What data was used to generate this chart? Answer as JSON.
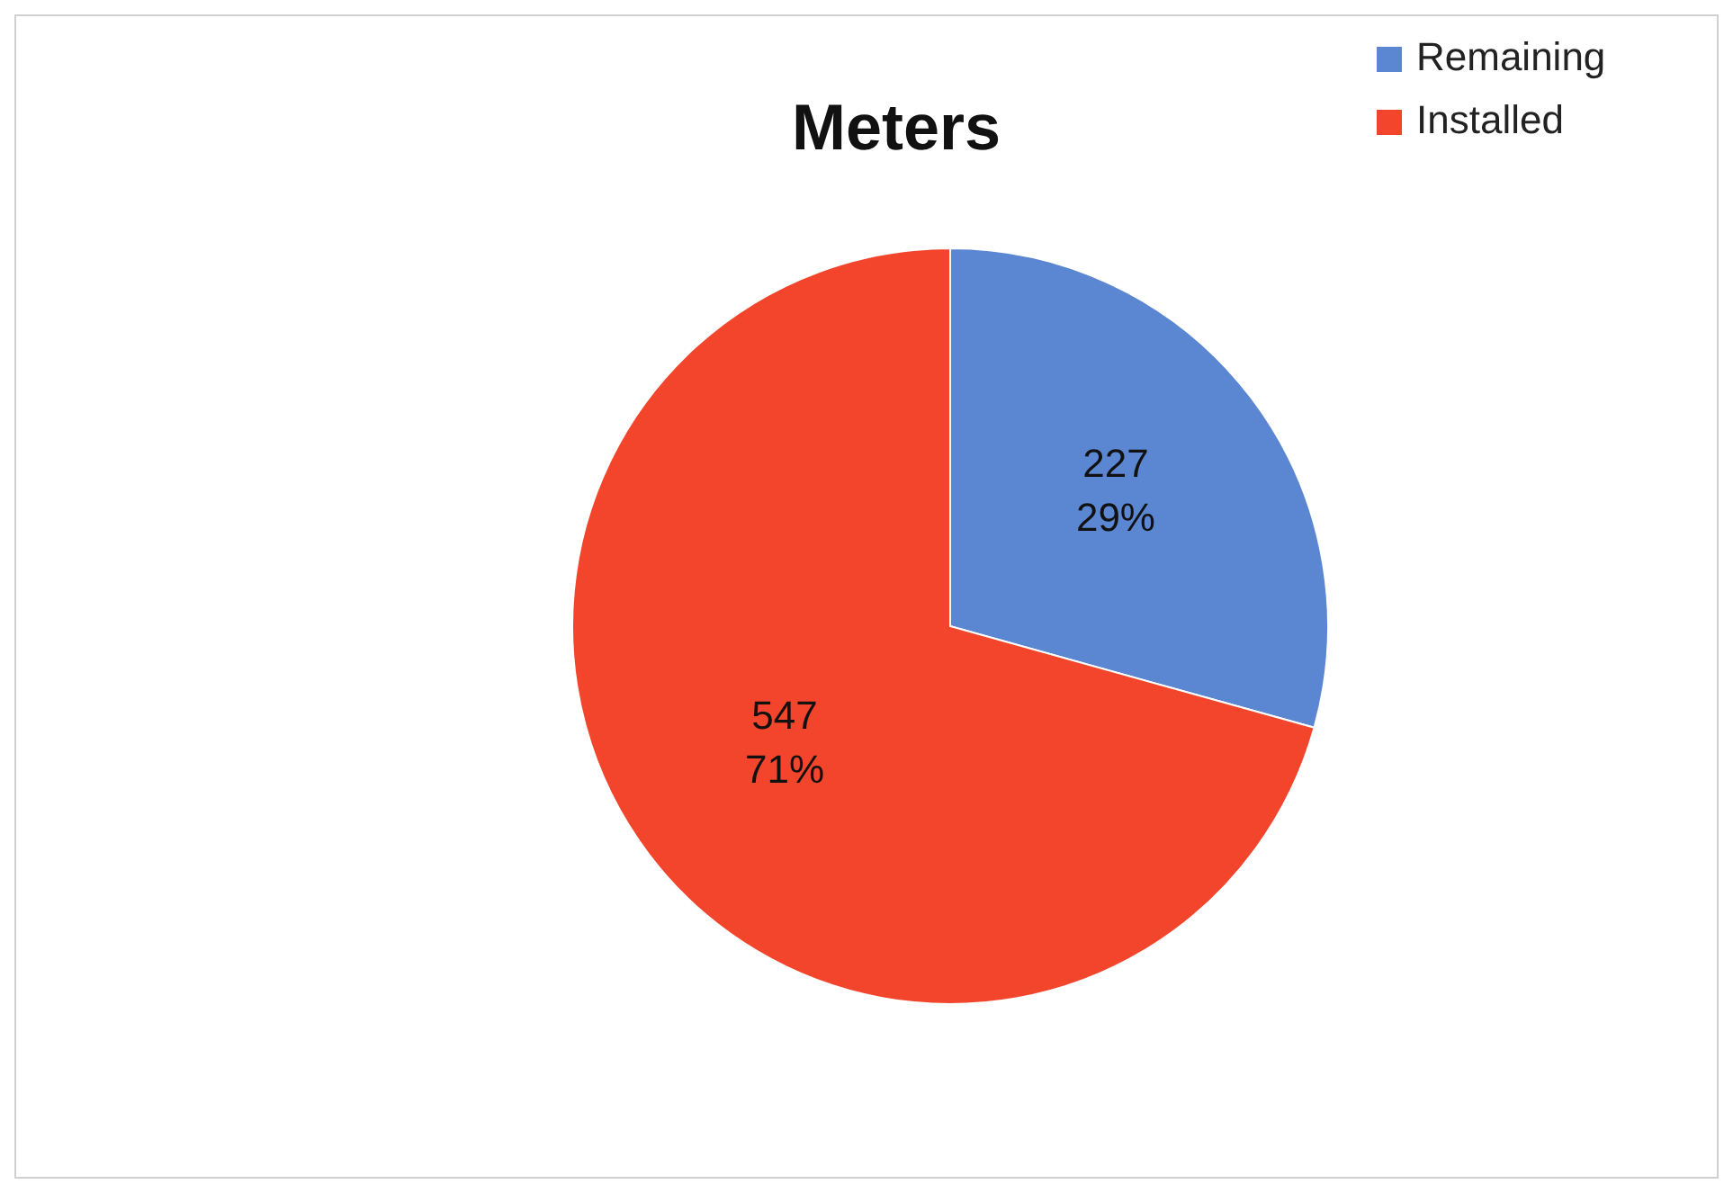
{
  "chart_data": {
    "type": "pie",
    "title": "Meters",
    "categories": [
      "Remaining",
      "Installed"
    ],
    "values": [
      227,
      547
    ],
    "colors": [
      "#5b87d2",
      "#f2452c"
    ],
    "value_labels": [
      "227\n29%",
      "547\n71%"
    ],
    "legend": "top right"
  }
}
